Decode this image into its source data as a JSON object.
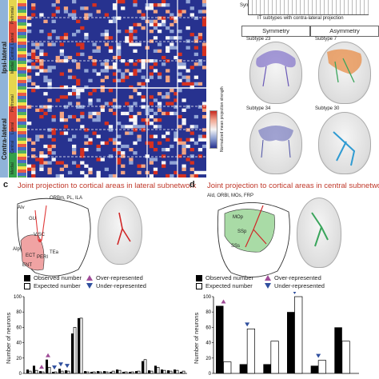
{
  "panel_a": {
    "side_labels": [
      "Ipsi-lateral",
      "Contra-lateral"
    ],
    "group_labels_ipsi": [
      "Prefrontal",
      "Lateral",
      "Central",
      "Medial"
    ],
    "group_labels_contra": [
      "Prefrontal",
      "Lateral",
      "Central",
      "Medial"
    ],
    "colorbar_label": "Normalized mean projection strength"
  },
  "panel_b": {
    "axis_label": "IT subtypes with contra-lateral projection",
    "col_headers": [
      "Symmetry",
      "Asymmetry"
    ],
    "subtypes": [
      "Subtype 23",
      "Subtype 7",
      "Subtype 34",
      "Subtype 30"
    ],
    "fragment": "Sym"
  },
  "panel_c": {
    "letter": "c",
    "title": "Joint projection to cortical areas in lateral subnetwork",
    "area_labels": [
      "ORBm, PL, ILA",
      "AIv",
      "GU",
      "VISC",
      "AIp",
      "ECT",
      "PERI",
      "TEa",
      "ENT"
    ],
    "legend": [
      "Observed number",
      "Expected number",
      "Over-represented",
      "Under-represented"
    ],
    "ylabel": "Number of neurons",
    "yticks": [
      "0",
      "20",
      "40",
      "60",
      "80",
      "100"
    ]
  },
  "panel_d": {
    "letter": "d",
    "title": "Joint projection to cortical areas in central subnetwork",
    "area_labels": [
      "AId, ORBl, MOs, FRP",
      "MOp",
      "SSp",
      "SSs"
    ],
    "legend": [
      "Observed number",
      "Expected number",
      "Over-represented",
      "Under-represented"
    ],
    "ylabel": "Number of neurons",
    "yticks": [
      "0",
      "20",
      "40",
      "60",
      "80",
      "100"
    ]
  },
  "chart_data": [
    {
      "type": "bar",
      "ylabel": "Number of neurons",
      "ylim": [
        0,
        100
      ],
      "series": [
        {
          "name": "Observed number",
          "values": [
            5,
            10,
            3,
            18,
            2,
            6,
            4,
            52,
            72,
            3,
            2,
            3,
            3,
            2,
            5,
            2,
            2,
            3,
            16,
            4,
            10,
            5,
            4,
            5,
            2
          ]
        },
        {
          "name": "Expected number",
          "values": [
            3,
            4,
            2,
            8,
            2,
            3,
            3,
            60,
            72,
            2,
            2,
            2,
            2,
            3,
            4,
            2,
            2,
            3,
            18,
            3,
            8,
            4,
            3,
            4,
            3
          ]
        }
      ],
      "markers": {
        "over": [
          2,
          3
        ],
        "under": [
          4,
          5,
          6
        ]
      }
    },
    {
      "type": "bar",
      "ylabel": "Number of neurons",
      "ylim": [
        0,
        100
      ],
      "series": [
        {
          "name": "Observed number",
          "values": [
            88,
            12,
            12,
            80,
            10,
            60
          ]
        },
        {
          "name": "Expected number",
          "values": [
            15,
            58,
            42,
            100,
            17,
            42
          ]
        }
      ],
      "markers": {
        "over": [
          0
        ],
        "under": [
          1,
          3,
          4
        ]
      }
    }
  ]
}
